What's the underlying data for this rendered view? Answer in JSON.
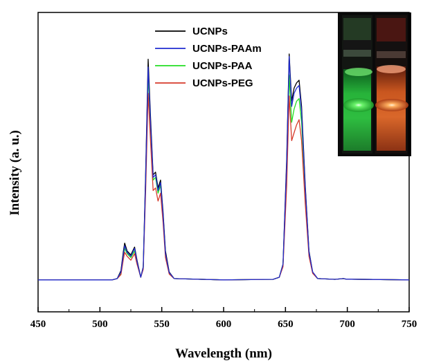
{
  "chart_data": {
    "type": "line",
    "xlabel": "Wavelength (nm)",
    "ylabel": "Intensity (a. u.)",
    "xlim": [
      450,
      750
    ],
    "ylim": [
      0,
      1
    ],
    "x_ticks": [
      450,
      500,
      550,
      600,
      650,
      700,
      750
    ],
    "grid": false,
    "legend_position": "top-center",
    "inset": "photograph of two vials showing green and red upconversion luminescence",
    "series": [
      {
        "name": "UCNPs",
        "color": "#000000",
        "points": [
          [
            450,
            0.04
          ],
          [
            510,
            0.04
          ],
          [
            514,
            0.045
          ],
          [
            517,
            0.075
          ],
          [
            519,
            0.15
          ],
          [
            520,
            0.18
          ],
          [
            522,
            0.15
          ],
          [
            525,
            0.135
          ],
          [
            528,
            0.165
          ],
          [
            530,
            0.115
          ],
          [
            533,
            0.05
          ],
          [
            535,
            0.09
          ],
          [
            537,
            0.45
          ],
          [
            539,
            0.88
          ],
          [
            541,
            0.65
          ],
          [
            543,
            0.44
          ],
          [
            545,
            0.45
          ],
          [
            547,
            0.39
          ],
          [
            549,
            0.42
          ],
          [
            551,
            0.3
          ],
          [
            553,
            0.15
          ],
          [
            556,
            0.07
          ],
          [
            560,
            0.045
          ],
          [
            600,
            0.04
          ],
          [
            640,
            0.042
          ],
          [
            645,
            0.05
          ],
          [
            648,
            0.1
          ],
          [
            651,
            0.5
          ],
          [
            653,
            0.9
          ],
          [
            655,
            0.72
          ],
          [
            657,
            0.77
          ],
          [
            659,
            0.79
          ],
          [
            661,
            0.8
          ],
          [
            663,
            0.7
          ],
          [
            666,
            0.4
          ],
          [
            669,
            0.15
          ],
          [
            672,
            0.07
          ],
          [
            676,
            0.045
          ],
          [
            690,
            0.042
          ],
          [
            697,
            0.045
          ],
          [
            699,
            0.043
          ],
          [
            750,
            0.04
          ]
        ]
      },
      {
        "name": "UCNPs-PAAm",
        "color": "#1f2bd0",
        "points": [
          [
            450,
            0.04
          ],
          [
            510,
            0.04
          ],
          [
            514,
            0.045
          ],
          [
            517,
            0.07
          ],
          [
            519,
            0.14
          ],
          [
            520,
            0.17
          ],
          [
            522,
            0.145
          ],
          [
            525,
            0.13
          ],
          [
            528,
            0.16
          ],
          [
            530,
            0.11
          ],
          [
            533,
            0.05
          ],
          [
            535,
            0.088
          ],
          [
            537,
            0.43
          ],
          [
            539,
            0.85
          ],
          [
            541,
            0.63
          ],
          [
            543,
            0.43
          ],
          [
            545,
            0.44
          ],
          [
            547,
            0.38
          ],
          [
            549,
            0.41
          ],
          [
            551,
            0.29
          ],
          [
            553,
            0.14
          ],
          [
            556,
            0.068
          ],
          [
            560,
            0.045
          ],
          [
            600,
            0.04
          ],
          [
            640,
            0.042
          ],
          [
            645,
            0.05
          ],
          [
            648,
            0.1
          ],
          [
            651,
            0.48
          ],
          [
            653,
            0.89
          ],
          [
            655,
            0.7
          ],
          [
            657,
            0.75
          ],
          [
            659,
            0.77
          ],
          [
            661,
            0.78
          ],
          [
            663,
            0.68
          ],
          [
            666,
            0.39
          ],
          [
            669,
            0.145
          ],
          [
            672,
            0.07
          ],
          [
            676,
            0.045
          ],
          [
            690,
            0.042
          ],
          [
            697,
            0.045
          ],
          [
            699,
            0.043
          ],
          [
            750,
            0.04
          ]
        ]
      },
      {
        "name": "UCNPs-PAA",
        "color": "#22dd22",
        "points": [
          [
            450,
            0.04
          ],
          [
            510,
            0.04
          ],
          [
            514,
            0.045
          ],
          [
            517,
            0.065
          ],
          [
            519,
            0.13
          ],
          [
            520,
            0.16
          ],
          [
            522,
            0.14
          ],
          [
            525,
            0.125
          ],
          [
            528,
            0.15
          ],
          [
            530,
            0.105
          ],
          [
            533,
            0.05
          ],
          [
            535,
            0.085
          ],
          [
            537,
            0.41
          ],
          [
            539,
            0.82
          ],
          [
            541,
            0.61
          ],
          [
            543,
            0.42
          ],
          [
            545,
            0.43
          ],
          [
            547,
            0.37
          ],
          [
            549,
            0.4
          ],
          [
            551,
            0.28
          ],
          [
            553,
            0.135
          ],
          [
            556,
            0.066
          ],
          [
            560,
            0.045
          ],
          [
            600,
            0.04
          ],
          [
            640,
            0.042
          ],
          [
            645,
            0.05
          ],
          [
            648,
            0.1
          ],
          [
            651,
            0.45
          ],
          [
            653,
            0.82
          ],
          [
            655,
            0.64
          ],
          [
            657,
            0.69
          ],
          [
            659,
            0.72
          ],
          [
            661,
            0.73
          ],
          [
            663,
            0.64
          ],
          [
            666,
            0.37
          ],
          [
            669,
            0.14
          ],
          [
            672,
            0.068
          ],
          [
            676,
            0.045
          ],
          [
            690,
            0.042
          ],
          [
            697,
            0.045
          ],
          [
            699,
            0.043
          ],
          [
            750,
            0.04
          ]
        ]
      },
      {
        "name": "UCNPs-PEG",
        "color": "#d63a2a",
        "points": [
          [
            450,
            0.04
          ],
          [
            510,
            0.04
          ],
          [
            514,
            0.045
          ],
          [
            517,
            0.06
          ],
          [
            519,
            0.12
          ],
          [
            520,
            0.145
          ],
          [
            522,
            0.13
          ],
          [
            525,
            0.115
          ],
          [
            528,
            0.14
          ],
          [
            530,
            0.1
          ],
          [
            533,
            0.05
          ],
          [
            535,
            0.08
          ],
          [
            537,
            0.38
          ],
          [
            539,
            0.75
          ],
          [
            541,
            0.56
          ],
          [
            543,
            0.38
          ],
          [
            545,
            0.39
          ],
          [
            547,
            0.34
          ],
          [
            549,
            0.37
          ],
          [
            551,
            0.26
          ],
          [
            553,
            0.125
          ],
          [
            556,
            0.062
          ],
          [
            560,
            0.045
          ],
          [
            600,
            0.04
          ],
          [
            640,
            0.042
          ],
          [
            645,
            0.05
          ],
          [
            648,
            0.09
          ],
          [
            651,
            0.4
          ],
          [
            653,
            0.74
          ],
          [
            655,
            0.57
          ],
          [
            657,
            0.6
          ],
          [
            659,
            0.63
          ],
          [
            661,
            0.65
          ],
          [
            663,
            0.57
          ],
          [
            666,
            0.33
          ],
          [
            669,
            0.13
          ],
          [
            672,
            0.065
          ],
          [
            676,
            0.045
          ],
          [
            690,
            0.042
          ],
          [
            697,
            0.045
          ],
          [
            699,
            0.043
          ],
          [
            750,
            0.04
          ]
        ]
      }
    ]
  }
}
